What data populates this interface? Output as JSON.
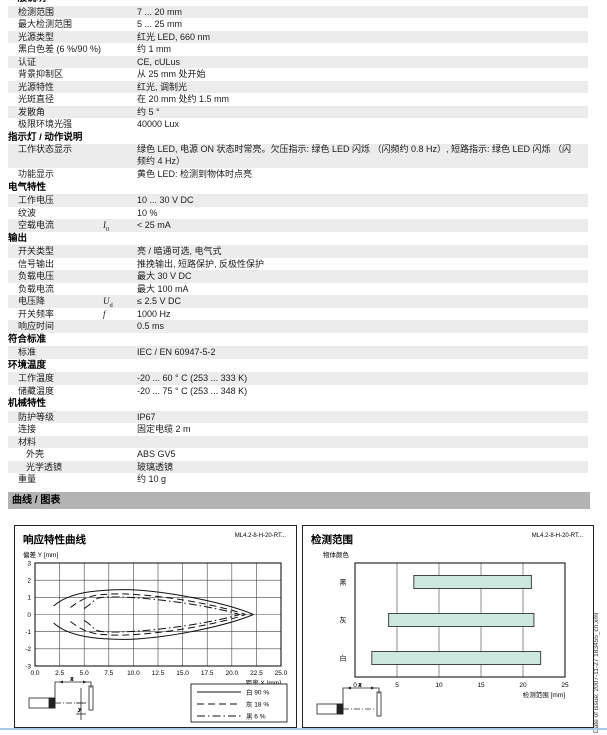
{
  "page": {
    "charts_band_title": "曲线 / 图表",
    "footer_vertical": "Date of issue: 2007-11-27      183455_cn.xml"
  },
  "colors": {
    "row_stripe": "#ececec",
    "band_bg": "#b3b3b3",
    "bar_fill": "#cde8df",
    "bottom_line": "#a9c8e6"
  },
  "spec_table": {
    "sections": [
      {
        "title": "一般说明",
        "rows": [
          {
            "label": "检测范围",
            "value": "7 ... 20 mm"
          },
          {
            "label": "最大检测范围",
            "value": "5 ... 25 mm"
          },
          {
            "label": "光源类型",
            "value": "红光 LED, 660 nm"
          },
          {
            "label": "黑白色差 (6 %/90 %)",
            "value": "约 1 mm"
          },
          {
            "label": "认证",
            "value": "CE, cULus"
          },
          {
            "label": "背景抑制区",
            "value": "从 25 mm 处开始"
          },
          {
            "label": "光源特性",
            "value": "红光, 调制光"
          },
          {
            "label": "光斑直径",
            "value": "在 20 mm 处约 1.5 mm"
          },
          {
            "label": "发散角",
            "value": "约 5 °"
          },
          {
            "label": "极限环境光强",
            "value": "40000 Lux"
          }
        ]
      },
      {
        "title": "指示灯 / 动作说明",
        "rows": [
          {
            "label": "工作状态显示",
            "value": "绿色 LED, 电源 ON 状态时常亮。欠压指示: 绿色 LED 闪烁 （闪频约 0.8 Hz）, 短路指示: 绿色 LED 闪烁 （闪频约 4 Hz）",
            "twoline": true
          },
          {
            "label": "功能显示",
            "value": "黄色 LED: 检测到物体时点亮"
          }
        ]
      },
      {
        "title": "电气特性",
        "rows": [
          {
            "label": "工作电压",
            "value": "10 ... 30 V DC"
          },
          {
            "label": "纹波",
            "value": "10 %"
          },
          {
            "label": "空载电流",
            "symbol_base": "I",
            "symbol_sub": "0",
            "value": "< 25 mA"
          }
        ]
      },
      {
        "title": "输出",
        "rows": [
          {
            "label": "开关类型",
            "value": "亮 / 暗通可选, 电气式"
          },
          {
            "label": "信号输出",
            "value": "推挽输出, 短路保护, 反极性保护"
          },
          {
            "label": "负载电压",
            "value": "最大 30 V DC"
          },
          {
            "label": "负载电流",
            "value": "最大 100 mA"
          },
          {
            "label": "电压降",
            "symbol_base": "U",
            "symbol_sub": "d",
            "value": "≤ 2.5 V DC"
          },
          {
            "label": "开关频率",
            "symbol_base": "f",
            "symbol_sub": "",
            "value": "1000 Hz"
          },
          {
            "label": "响应时间",
            "value": "0.5 ms"
          }
        ]
      },
      {
        "title": "符合标准",
        "rows": [
          {
            "label": "标准",
            "value": "IEC / EN 60947-5-2"
          }
        ]
      },
      {
        "title": "环境温度",
        "rows": [
          {
            "label": "工作温度",
            "value": "-20 ... 60 ° C (253 ... 333 K)"
          },
          {
            "label": "储藏温度",
            "value": "-20 ... 75 ° C (253 ... 348 K)"
          }
        ]
      },
      {
        "title": "机械特性",
        "rows": [
          {
            "label": "防护等级",
            "value": "IP67"
          },
          {
            "label": "连接",
            "value": "固定电缆 2 m"
          },
          {
            "label": "材料",
            "value": ""
          },
          {
            "label": "外壳",
            "value": "ABS GV5",
            "indent": true
          },
          {
            "label": "光学透镜",
            "value": "玻璃透镜",
            "indent": true
          },
          {
            "label": "重量",
            "value": "约 10 g"
          }
        ]
      }
    ]
  },
  "chart_data": [
    {
      "type": "line",
      "title": "响应特性曲线",
      "model": "ML4.2-8-H-20-RT...",
      "xlabel": "距离 X [mm]",
      "ylabel": "偏差 Y [mm]",
      "xlim": [
        0,
        25
      ],
      "ylim": [
        -3,
        3
      ],
      "xticks": [
        "0.0",
        "2.5",
        "5.0",
        "7.5",
        "10.0",
        "12.5",
        "15.0",
        "17.5",
        "20.0",
        "22.5",
        "25.0"
      ],
      "yticks": [
        "3",
        "2",
        "1",
        "0",
        "-1",
        "-2",
        "-3"
      ],
      "grid": true,
      "legend_position": "bottom-right",
      "series": [
        {
          "name": "白 90 %",
          "style": "solid",
          "x_start": 1.9,
          "x_peak": 9.5,
          "peak": 1.45,
          "x_end": 22.2
        },
        {
          "name": "灰 18 %",
          "style": "dashed",
          "x_start": 3.6,
          "x_peak": 9.0,
          "peak": 1.2,
          "x_end": 21.4
        },
        {
          "name": "黑 6 %",
          "style": "dashdot",
          "x_start": 5.0,
          "x_peak": 8.5,
          "peak": 1.02,
          "x_end": 20.8
        }
      ]
    },
    {
      "type": "bar",
      "title": "检测范围",
      "model": "ML4.2-8-H-20-RT...",
      "xlabel": "检测范围 [mm]",
      "ylabel": "物体颜色",
      "xlim": [
        0,
        25
      ],
      "xticks": [
        "0",
        "5",
        "10",
        "15",
        "20",
        "25"
      ],
      "grid": true,
      "categories": [
        "黑",
        "灰",
        "白"
      ],
      "bars": [
        [
          7,
          21
        ],
        [
          4,
          21.3
        ],
        [
          2,
          22.1
        ]
      ]
    }
  ]
}
